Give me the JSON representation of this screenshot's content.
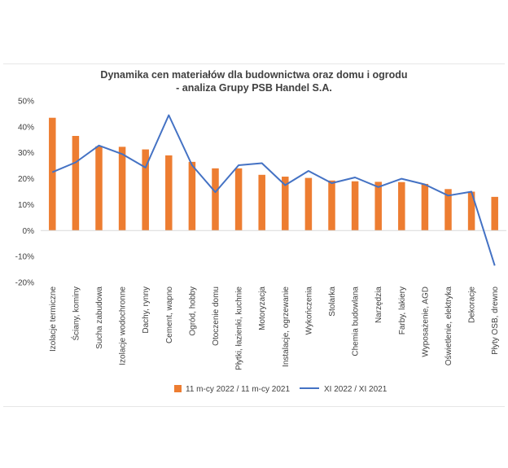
{
  "chart_data": {
    "type": "bar",
    "title_lines": [
      "Dynamika cen materiałów dla budownictwa oraz domu i ogrodu",
      "- analiza Grupy PSB Handel S.A."
    ],
    "categories": [
      "Izolacje termiczne",
      "Ściany, kominy",
      "Sucha zabudowa",
      "Izolacje wodochronne",
      "Dachy, rynny",
      "Cement, wapno",
      "Ogród, hobby",
      "Otoczenie domu",
      "Płytki, łazienki, kuchnie",
      "Motoryzacja",
      "Instalacje, ogrzewanie",
      "Wykończenia",
      "Stolarka",
      "Chemia budowlana",
      "Narzędzia",
      "Farby, lakiery",
      "Wyposażenie, AGD",
      "Oświetlenie, elektryka",
      "Dekoracje",
      "Płyty OSB, drewno"
    ],
    "series": [
      {
        "name": "11 m-cy 2022 / 11 m-cy 2021",
        "kind": "bar",
        "color": "#ED7D31",
        "values": [
          43.5,
          36.5,
          32.5,
          32.3,
          31.3,
          29.0,
          26.5,
          24.0,
          24.0,
          21.5,
          20.8,
          20.3,
          19.3,
          19.0,
          18.8,
          18.7,
          18.0,
          16.0,
          15.0,
          13.0
        ]
      },
      {
        "name": "XI 2022 / XI 2021",
        "kind": "line",
        "color": "#4472C4",
        "values": [
          22.5,
          26.3,
          32.8,
          29.5,
          24.3,
          44.5,
          25.2,
          14.8,
          25.2,
          26.0,
          17.5,
          23.0,
          18.3,
          20.5,
          16.8,
          20.0,
          17.8,
          13.5,
          15.0,
          -13.5
        ]
      }
    ],
    "ylim": [
      -20,
      50
    ],
    "yticks": [
      50,
      40,
      30,
      20,
      10,
      0,
      -10,
      -20
    ],
    "ytick_labels": [
      "50%",
      "40%",
      "30%",
      "20%",
      "10%",
      "0%",
      "-10%",
      "-20%"
    ],
    "legend_position": "bottom",
    "grid": false
  }
}
